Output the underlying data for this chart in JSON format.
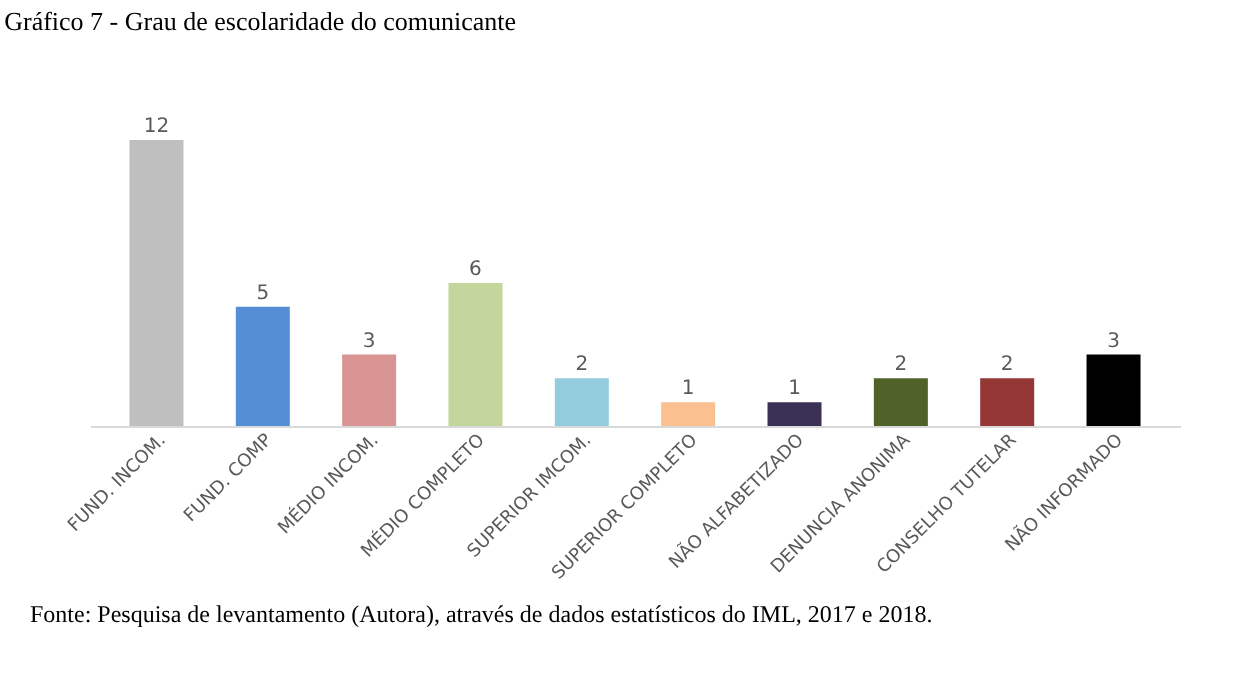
{
  "chart_data": {
    "type": "bar",
    "title": "Gráfico 7 - Grau de escolaridade do comunicante",
    "categories": [
      "FUND. INCOM.",
      "FUND. COMP",
      "MÉDIO INCOM.",
      "MÉDIO COMPLETO",
      "SUPERIOR IMCOM.",
      "SUPERIOR COMPLETO",
      "NÃO ALFABETIZADO",
      "DENUNCIA ANONIMA",
      "CONSELHO TUTELAR",
      "NÃO INFORMADO"
    ],
    "values": [
      12,
      5,
      3,
      6,
      2,
      1,
      1,
      2,
      2,
      3
    ],
    "colors": [
      "#bfbfbf",
      "#558ed5",
      "#d99594",
      "#c3d69b",
      "#93cddd",
      "#fac090",
      "#3b3156",
      "#4f6228",
      "#953735",
      "#000000"
    ],
    "data_labels": true,
    "annotations": [
      "Fonte: Pesquisa de levantamento (Autora), através de dados estatísticos do IML, 2017 e 2018."
    ]
  }
}
